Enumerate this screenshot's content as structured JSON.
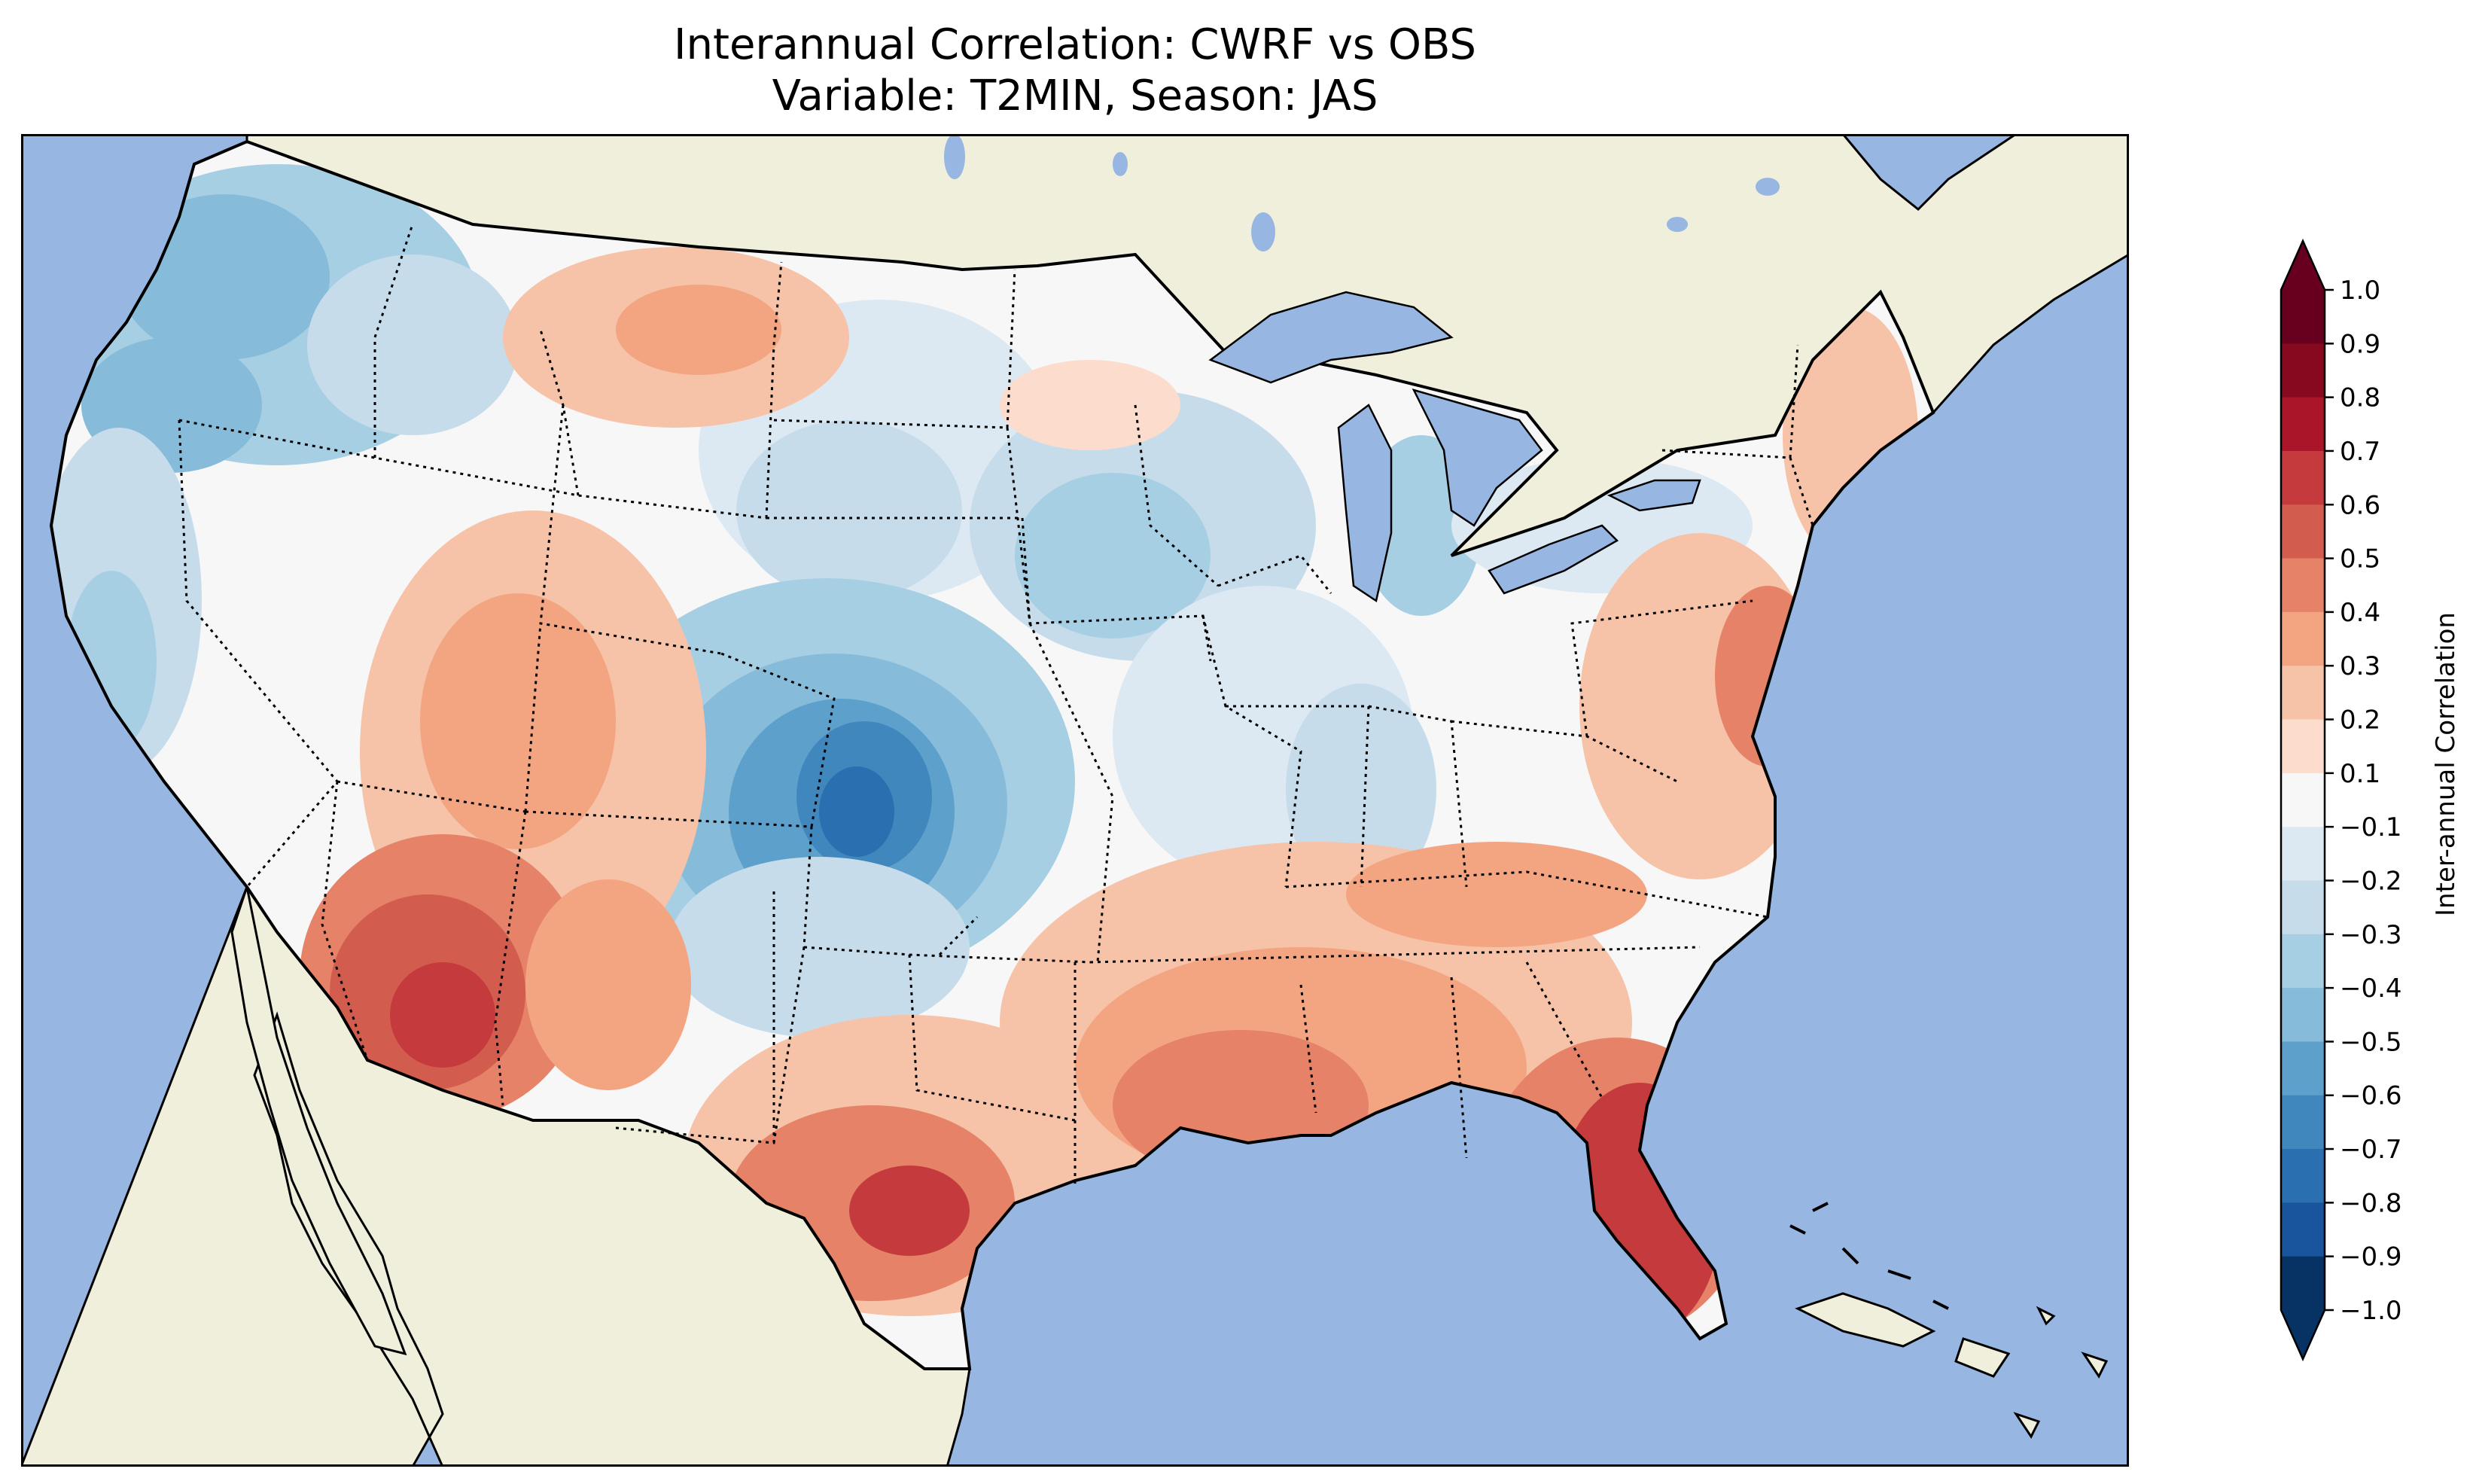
{
  "title": {
    "line1": "Interannual Correlation: CWRF vs OBS",
    "line2": "Variable: T2MIN, Season: JAS"
  },
  "colors": {
    "ocean": "#97b6e1",
    "land": "#efefdb",
    "coast": "#000000",
    "border": "#000000"
  },
  "colorbar": {
    "label": "Inter-annual Correlation",
    "min": -1.0,
    "max": 1.0,
    "extend": "both",
    "ticks": [
      "1.0",
      "0.9",
      "0.8",
      "0.7",
      "0.6",
      "0.5",
      "0.4",
      "0.3",
      "0.2",
      "0.1",
      "−0.1",
      "−0.2",
      "−0.3",
      "−0.4",
      "−0.5",
      "−0.6",
      "−0.7",
      "−0.8",
      "−0.9",
      "−1.0"
    ],
    "tick_values": [
      1.0,
      0.9,
      0.8,
      0.7,
      0.6,
      0.5,
      0.4,
      0.3,
      0.2,
      0.1,
      -0.1,
      -0.2,
      -0.3,
      -0.4,
      -0.5,
      -0.6,
      -0.7,
      -0.8,
      -0.9,
      -1.0
    ],
    "colors_top_to_bottom": [
      "#67001f",
      "#86091f",
      "#ab1529",
      "#c43a3d",
      "#d25d4f",
      "#e58267",
      "#f3a582",
      "#f7c3a8",
      "#fbdccd",
      "#f7f7f7",
      "#dde9f2",
      "#c6dceb",
      "#a7cfe4",
      "#86bcd9",
      "#5da0cb",
      "#3f87bd",
      "#2a6fb0",
      "#19559d",
      "#063264"
    ]
  },
  "regions": {
    "red": [
      {
        "name": "southwest-arizona",
        "value": 0.7
      },
      {
        "name": "texas-gulf-coast",
        "value": 0.6
      },
      {
        "name": "florida",
        "value": 0.7
      },
      {
        "name": "gulf-coast-south",
        "value": 0.5
      },
      {
        "name": "utah-nevada",
        "value": 0.4
      },
      {
        "name": "montana",
        "value": 0.3
      },
      {
        "name": "mid-atlantic",
        "value": 0.4
      },
      {
        "name": "new-england",
        "value": 0.3
      }
    ],
    "blue": [
      {
        "name": "pacific-northwest",
        "value": -0.4
      },
      {
        "name": "central-plains",
        "value": -0.7
      },
      {
        "name": "upper-midwest",
        "value": -0.4
      },
      {
        "name": "michigan",
        "value": -0.4
      },
      {
        "name": "california-coast",
        "value": -0.3
      }
    ]
  }
}
